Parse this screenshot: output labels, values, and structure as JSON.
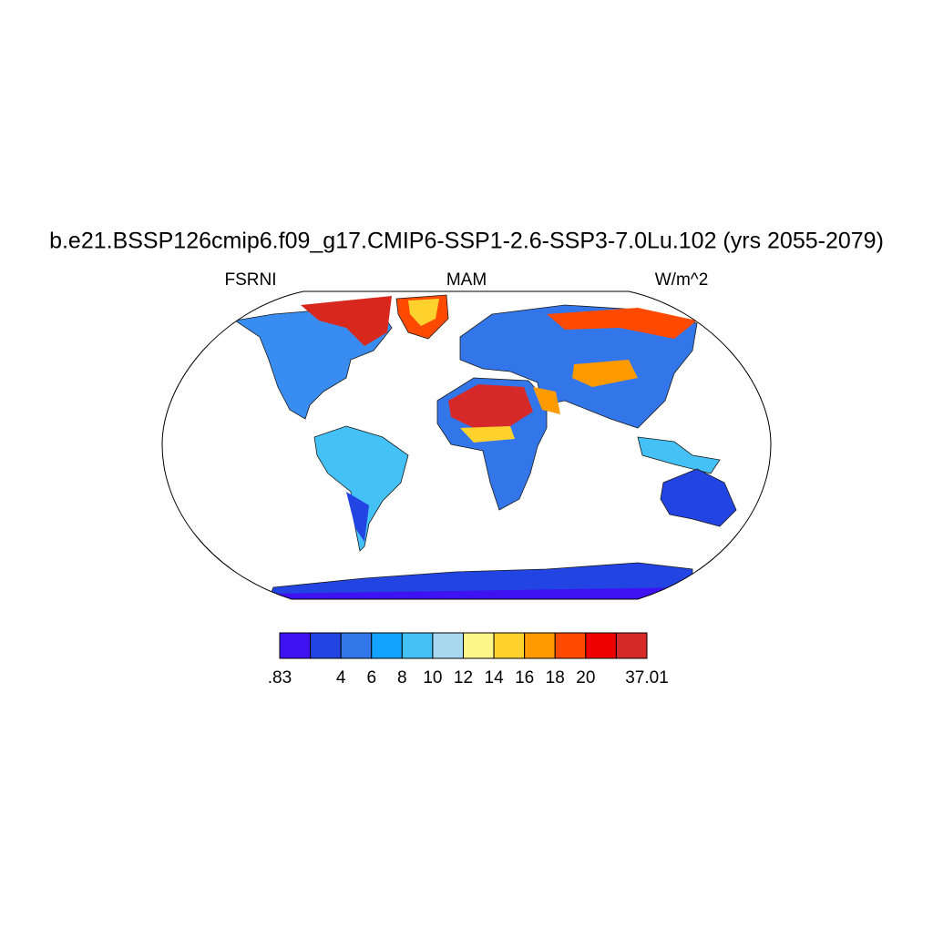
{
  "title": "b.e21.BSSP126cmip6.f09_g17.CMIP6-SSP1-2.6-SSP3-7.0Lu.102 (yrs 2055-2079)",
  "left_string": "FSRNI",
  "center_string": "MAM",
  "right_string": "W/m^2",
  "colorbar": {
    "colors": [
      "#3f12f2",
      "#2244e2",
      "#3276ea",
      "#12a2ff",
      "#44c2f8",
      "#a8d8f0",
      "#fff68a",
      "#ffd22e",
      "#ff9a00",
      "#ff4a00",
      "#ee0000",
      "#d62a2a"
    ],
    "labels": [
      ".83",
      null,
      "4",
      "6",
      "8",
      "10",
      "12",
      "14",
      "16",
      "18",
      "20",
      null,
      "37.01"
    ]
  }
}
